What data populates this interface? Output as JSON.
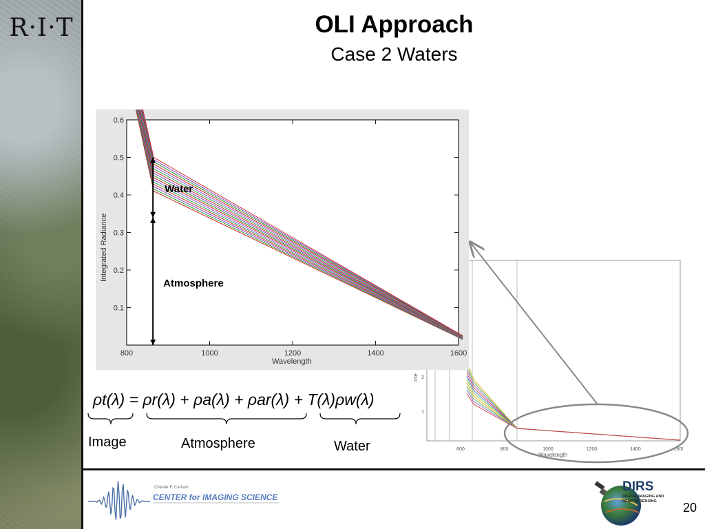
{
  "slide": {
    "logo_text": "R·I·T",
    "title": "OLI Approach",
    "subtitle": "Case 2 Waters",
    "page_number": "20"
  },
  "equation": {
    "text": "ρt(λ) = ρr(λ) + ρa(λ) + ρar(λ) + T(λ)ρw(λ)",
    "labels": {
      "image": "Image",
      "atmosphere": "Atmosphere",
      "water": "Water"
    }
  },
  "footer": {
    "cis_small": "Chester F. Carlson",
    "cis_name": "CENTER for IMAGING SCIENCE",
    "dirs_name": "DIRS",
    "dirs_sub1": "DIGITAL IMAGING AND",
    "dirs_sub2": "REMOTE SENSING"
  },
  "chart_data": [
    {
      "type": "line",
      "xlabel": "Wavelength",
      "ylabel": "Integrated Radiance",
      "xlim": [
        800,
        1600
      ],
      "ylim": [
        0,
        0.6
      ],
      "x_ticks": [
        800,
        1000,
        1200,
        1400,
        1600
      ],
      "y_ticks": [
        0.1,
        0.2,
        0.3,
        0.4,
        0.5,
        0.6
      ],
      "x": [
        820,
        865,
        1610
      ],
      "series_band": {
        "count": 16,
        "at_820": [
          0.64,
          0.72
        ],
        "at_865": [
          0.41,
          0.5
        ],
        "at_1610": [
          0.015,
          0.025
        ]
      },
      "annotations": [
        "Water",
        "Atmosphere"
      ],
      "annotation_levels": {
        "atmosphere_top": 0.34,
        "water_top": 0.5
      },
      "colors": [
        "#cc2222",
        "#229922",
        "#8844cc",
        "#cc3333",
        "#33aa55",
        "#9955dd"
      ]
    },
    {
      "type": "line",
      "xlabel": "Wavelength",
      "ylabel": "Inte",
      "x_ticks": [
        600,
        800,
        1000,
        1200,
        1400,
        1600
      ],
      "y_ticks": [
        1,
        2,
        3
      ],
      "note": "background full-spectrum plot, partially covered"
    }
  ]
}
